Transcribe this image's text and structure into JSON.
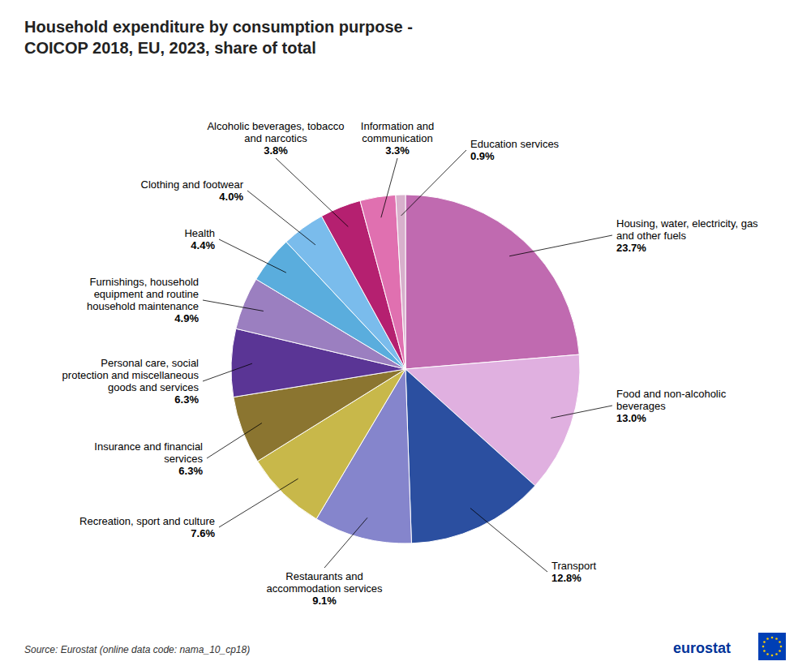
{
  "chart_data": {
    "type": "pie",
    "title": "Household expenditure by consumption purpose -\nCOICOP 2018, EU, 2023, share of total",
    "categories": [
      "Housing, water, electricity, gas\nand other fuels",
      "Food and non-alcoholic\nbeverages",
      "Transport",
      "Restaurants and\naccommodation services",
      "Recreation, sport and culture",
      "Insurance and financial\nservices",
      "Personal care, social\nprotection and miscellaneous\ngoods and services",
      "Furnishings, household\nequipment and routine\nhousehold maintenance",
      "Health",
      "Clothing and footwear",
      "Alcoholic beverages, tobacco\nand narcotics",
      "Information and\ncommunication",
      "Education services"
    ],
    "values": [
      23.7,
      13.0,
      12.8,
      9.1,
      7.6,
      6.3,
      6.3,
      4.9,
      4.4,
      4.0,
      3.8,
      3.3,
      0.9
    ],
    "value_labels": [
      "23.7%",
      "13.0%",
      "12.8%",
      "9.1%",
      "7.6%",
      "6.3%",
      "6.3%",
      "4.9%",
      "4.4%",
      "4.0%",
      "3.8%",
      "3.3%",
      "0.9%"
    ],
    "colors": [
      "#c06ab0",
      "#e0b0e0",
      "#2b4fa0",
      "#8585cc",
      "#c8b84a",
      "#8b7530",
      "#5a3595",
      "#9b7fc0",
      "#5aaddd",
      "#7abcec",
      "#b52070",
      "#e070b0",
      "#d8b0cc"
    ],
    "data_labels": true,
    "annotations": [
      "Source: Eurostat (online data code: nama_10_cp18)",
      "eurostat"
    ]
  }
}
